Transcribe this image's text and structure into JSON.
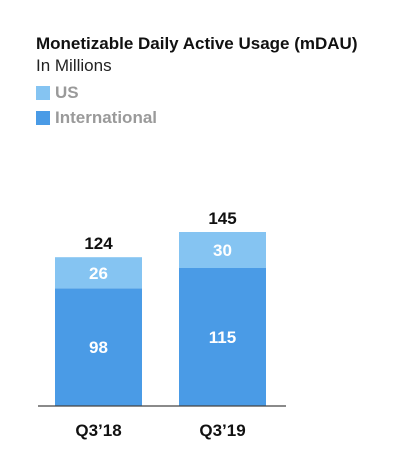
{
  "chart_data": {
    "type": "bar",
    "stacked": true,
    "title": "Monetizable Daily Active Usage (mDAU)",
    "subtitle": "In Millions",
    "categories": [
      "Q3’18",
      "Q3’19"
    ],
    "totals": [
      "124",
      "145"
    ],
    "series": [
      {
        "name": "International",
        "color": "#4a9be6",
        "values": [
          98,
          115
        ]
      },
      {
        "name": "US",
        "color": "#85c4f2",
        "values": [
          26,
          30
        ]
      }
    ],
    "ylim": [
      0,
      145
    ],
    "grid": false,
    "legend_position": "top-left"
  }
}
